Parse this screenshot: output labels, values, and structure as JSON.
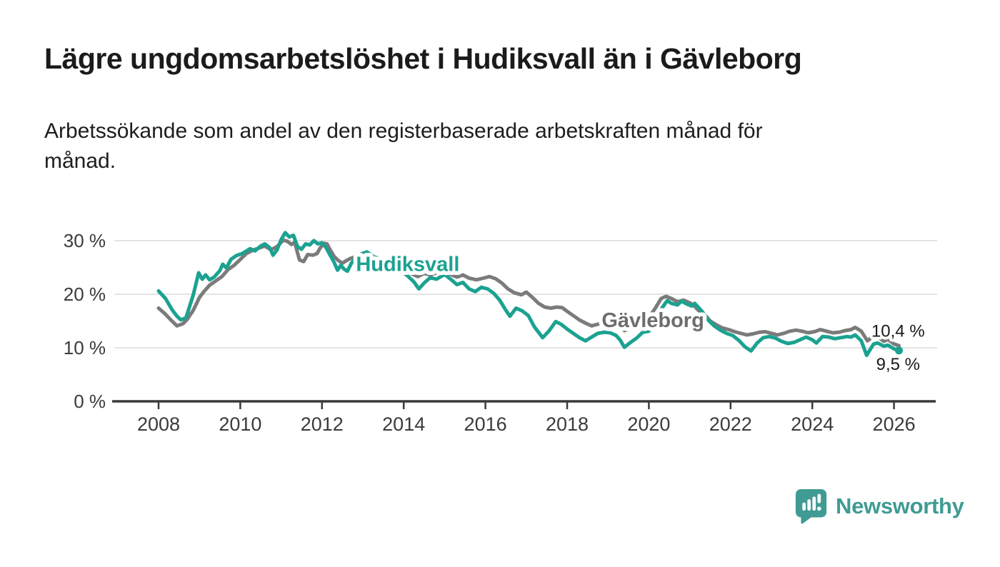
{
  "header": {
    "title": "Lägre ungdomsarbetslöshet i Hudiksvall än i Gävleborg",
    "subtitle": "Arbetssökande som andel av den registerbaserade arbetskraften månad för\nmånad."
  },
  "footer": {
    "brand": "Newsworthy",
    "brand_color": "#3f9b94"
  },
  "chart_data": {
    "type": "line",
    "title": "Lägre ungdomsarbetslöshet i Hudiksvall än i Gävleborg",
    "subtitle": "Arbetssökande som andel av den registerbaserade arbetskraften månad för månad.",
    "unit": "%",
    "grid": "horizontal",
    "legend": "inline-series-labels",
    "x_axis": {
      "range": [
        2006.9,
        2027.0
      ],
      "ticks": [
        {
          "value": 2008,
          "label": "2008"
        },
        {
          "value": 2010,
          "label": "2010"
        },
        {
          "value": 2012,
          "label": "2012"
        },
        {
          "value": 2014,
          "label": "2014"
        },
        {
          "value": 2016,
          "label": "2016"
        },
        {
          "value": 2018,
          "label": "2018"
        },
        {
          "value": 2020,
          "label": "2020"
        },
        {
          "value": 2022,
          "label": "2022"
        },
        {
          "value": 2024,
          "label": "2024"
        },
        {
          "value": 2026,
          "label": "2026"
        }
      ]
    },
    "y_axis": {
      "range": [
        0,
        33
      ],
      "ticks": [
        {
          "value": 0,
          "label": "0 %"
        },
        {
          "value": 10,
          "label": "10 %"
        },
        {
          "value": 20,
          "label": "20 %"
        },
        {
          "value": 30,
          "label": "30 %"
        }
      ]
    },
    "series": [
      {
        "name": "Hudiksvall",
        "color": "#1ba291",
        "label": {
          "text": "Hudiksvall",
          "x": 2014.1,
          "y": 25.7
        },
        "end_dot": true,
        "end_value": "9,5 %",
        "points": [
          [
            2008.0,
            20.6
          ],
          [
            2008.17,
            19.2
          ],
          [
            2008.33,
            17.1
          ],
          [
            2008.45,
            15.9
          ],
          [
            2008.55,
            15.2
          ],
          [
            2008.67,
            15.6
          ],
          [
            2008.75,
            17.5
          ],
          [
            2008.85,
            19.9
          ],
          [
            2008.98,
            24.0
          ],
          [
            2009.07,
            22.8
          ],
          [
            2009.15,
            23.6
          ],
          [
            2009.25,
            22.7
          ],
          [
            2009.36,
            23.2
          ],
          [
            2009.5,
            24.4
          ],
          [
            2009.57,
            25.6
          ],
          [
            2009.66,
            24.9
          ],
          [
            2009.77,
            26.5
          ],
          [
            2009.9,
            27.2
          ],
          [
            2010.05,
            27.6
          ],
          [
            2010.24,
            28.5
          ],
          [
            2010.36,
            28.1
          ],
          [
            2010.5,
            29.0
          ],
          [
            2010.6,
            29.4
          ],
          [
            2010.72,
            28.7
          ],
          [
            2010.8,
            27.3
          ],
          [
            2010.9,
            28.3
          ],
          [
            2011.0,
            30.2
          ],
          [
            2011.1,
            31.5
          ],
          [
            2011.2,
            30.7
          ],
          [
            2011.3,
            31.0
          ],
          [
            2011.4,
            28.9
          ],
          [
            2011.5,
            28.4
          ],
          [
            2011.6,
            29.4
          ],
          [
            2011.7,
            29.2
          ],
          [
            2011.8,
            30.0
          ],
          [
            2011.9,
            29.4
          ],
          [
            2012.0,
            29.6
          ],
          [
            2012.1,
            28.7
          ],
          [
            2012.2,
            27.3
          ],
          [
            2012.3,
            25.9
          ],
          [
            2012.38,
            24.5
          ],
          [
            2012.46,
            25.4
          ],
          [
            2012.54,
            24.7
          ],
          [
            2012.62,
            24.3
          ],
          [
            2012.72,
            25.8
          ],
          [
            2012.8,
            26.6
          ],
          [
            2012.95,
            27.5
          ],
          [
            2013.1,
            27.9
          ],
          [
            2013.3,
            26.8
          ],
          [
            2013.5,
            26.2
          ],
          [
            2013.7,
            25.6
          ],
          [
            2013.9,
            24.6
          ],
          [
            2014.1,
            23.4
          ],
          [
            2014.25,
            22.3
          ],
          [
            2014.37,
            21.0
          ],
          [
            2014.5,
            22.1
          ],
          [
            2014.65,
            23.1
          ],
          [
            2014.8,
            22.8
          ],
          [
            2015.0,
            23.7
          ],
          [
            2015.15,
            22.8
          ],
          [
            2015.3,
            21.8
          ],
          [
            2015.45,
            22.2
          ],
          [
            2015.6,
            21.0
          ],
          [
            2015.75,
            20.5
          ],
          [
            2015.9,
            21.3
          ],
          [
            2016.05,
            21.0
          ],
          [
            2016.2,
            20.2
          ],
          [
            2016.35,
            18.9
          ],
          [
            2016.5,
            17.0
          ],
          [
            2016.6,
            15.9
          ],
          [
            2016.75,
            17.4
          ],
          [
            2016.9,
            16.9
          ],
          [
            2017.05,
            16.0
          ],
          [
            2017.2,
            13.9
          ],
          [
            2017.4,
            11.9
          ],
          [
            2017.55,
            13.1
          ],
          [
            2017.72,
            14.9
          ],
          [
            2017.85,
            14.4
          ],
          [
            2018.0,
            13.5
          ],
          [
            2018.15,
            12.7
          ],
          [
            2018.3,
            11.9
          ],
          [
            2018.45,
            11.3
          ],
          [
            2018.6,
            12.0
          ],
          [
            2018.75,
            12.7
          ],
          [
            2018.9,
            12.9
          ],
          [
            2019.05,
            12.8
          ],
          [
            2019.2,
            12.3
          ],
          [
            2019.3,
            11.4
          ],
          [
            2019.4,
            10.1
          ],
          [
            2019.55,
            11.0
          ],
          [
            2019.7,
            11.8
          ],
          [
            2019.85,
            12.9
          ],
          [
            2020.0,
            13.1
          ],
          [
            2020.15,
            14.7
          ],
          [
            2020.3,
            17.2
          ],
          [
            2020.45,
            18.8
          ],
          [
            2020.55,
            18.3
          ],
          [
            2020.7,
            18.0
          ],
          [
            2020.8,
            18.7
          ],
          [
            2020.95,
            18.1
          ],
          [
            2021.05,
            17.8
          ],
          [
            2021.12,
            18.3
          ],
          [
            2021.3,
            16.8
          ],
          [
            2021.45,
            15.2
          ],
          [
            2021.6,
            14.1
          ],
          [
            2021.75,
            13.3
          ],
          [
            2021.9,
            12.7
          ],
          [
            2022.05,
            12.3
          ],
          [
            2022.2,
            11.4
          ],
          [
            2022.35,
            10.2
          ],
          [
            2022.5,
            9.4
          ],
          [
            2022.65,
            10.9
          ],
          [
            2022.8,
            11.9
          ],
          [
            2022.95,
            12.1
          ],
          [
            2023.1,
            11.8
          ],
          [
            2023.25,
            11.2
          ],
          [
            2023.4,
            10.8
          ],
          [
            2023.55,
            11.0
          ],
          [
            2023.7,
            11.5
          ],
          [
            2023.85,
            12.0
          ],
          [
            2024.0,
            11.5
          ],
          [
            2024.1,
            10.9
          ],
          [
            2024.25,
            12.1
          ],
          [
            2024.4,
            12.0
          ],
          [
            2024.55,
            11.7
          ],
          [
            2024.7,
            11.9
          ],
          [
            2024.85,
            12.1
          ],
          [
            2024.95,
            12.0
          ],
          [
            2025.05,
            12.4
          ],
          [
            2025.2,
            11.3
          ],
          [
            2025.33,
            8.6
          ],
          [
            2025.5,
            10.7
          ],
          [
            2025.6,
            10.9
          ],
          [
            2025.75,
            10.3
          ],
          [
            2025.85,
            10.5
          ],
          [
            2026.0,
            9.8
          ],
          [
            2026.12,
            9.5
          ]
        ]
      },
      {
        "name": "Gävleborg",
        "color": "#7b7b7b",
        "label_color": "#6d6d6d",
        "label": {
          "text": "Gävleborg",
          "x": 2020.1,
          "y": 15.2
        },
        "end_dot": false,
        "end_value": "10,4 %",
        "points": [
          [
            2008.0,
            17.4
          ],
          [
            2008.15,
            16.4
          ],
          [
            2008.3,
            15.2
          ],
          [
            2008.45,
            14.1
          ],
          [
            2008.6,
            14.5
          ],
          [
            2008.7,
            15.3
          ],
          [
            2008.85,
            17.0
          ],
          [
            2009.0,
            19.4
          ],
          [
            2009.1,
            20.4
          ],
          [
            2009.25,
            21.7
          ],
          [
            2009.4,
            22.5
          ],
          [
            2009.55,
            23.3
          ],
          [
            2009.7,
            24.6
          ],
          [
            2009.85,
            25.4
          ],
          [
            2010.0,
            26.5
          ],
          [
            2010.15,
            27.6
          ],
          [
            2010.3,
            28.2
          ],
          [
            2010.45,
            28.6
          ],
          [
            2010.6,
            29.0
          ],
          [
            2010.75,
            28.3
          ],
          [
            2010.9,
            28.9
          ],
          [
            2011.05,
            30.1
          ],
          [
            2011.15,
            29.9
          ],
          [
            2011.25,
            29.3
          ],
          [
            2011.33,
            29.7
          ],
          [
            2011.45,
            26.4
          ],
          [
            2011.55,
            26.1
          ],
          [
            2011.65,
            27.4
          ],
          [
            2011.78,
            27.3
          ],
          [
            2011.88,
            27.6
          ],
          [
            2011.96,
            28.7
          ],
          [
            2012.05,
            29.5
          ],
          [
            2012.12,
            29.4
          ],
          [
            2012.2,
            28.3
          ],
          [
            2012.3,
            27.0
          ],
          [
            2012.4,
            26.3
          ],
          [
            2012.5,
            25.8
          ],
          [
            2012.6,
            26.3
          ],
          [
            2012.7,
            26.7
          ],
          [
            2012.85,
            27.1
          ],
          [
            2013.0,
            27.5
          ],
          [
            2013.2,
            27.1
          ],
          [
            2013.4,
            26.7
          ],
          [
            2013.6,
            26.2
          ],
          [
            2013.8,
            25.6
          ],
          [
            2014.0,
            24.8
          ],
          [
            2014.2,
            23.8
          ],
          [
            2014.35,
            23.3
          ],
          [
            2014.5,
            23.9
          ],
          [
            2014.65,
            23.6
          ],
          [
            2014.8,
            24.0
          ],
          [
            2015.0,
            24.3
          ],
          [
            2015.15,
            23.7
          ],
          [
            2015.3,
            23.2
          ],
          [
            2015.45,
            23.6
          ],
          [
            2015.6,
            23.0
          ],
          [
            2015.78,
            22.7
          ],
          [
            2015.95,
            23.0
          ],
          [
            2016.1,
            23.3
          ],
          [
            2016.25,
            22.9
          ],
          [
            2016.4,
            22.1
          ],
          [
            2016.55,
            21.0
          ],
          [
            2016.7,
            20.3
          ],
          [
            2016.88,
            19.9
          ],
          [
            2017.0,
            20.4
          ],
          [
            2017.15,
            19.4
          ],
          [
            2017.3,
            18.3
          ],
          [
            2017.45,
            17.6
          ],
          [
            2017.6,
            17.4
          ],
          [
            2017.75,
            17.6
          ],
          [
            2017.88,
            17.5
          ],
          [
            2018.0,
            16.8
          ],
          [
            2018.15,
            16.0
          ],
          [
            2018.3,
            15.2
          ],
          [
            2018.45,
            14.6
          ],
          [
            2018.6,
            14.1
          ],
          [
            2018.75,
            14.4
          ],
          [
            2018.9,
            14.7
          ],
          [
            2019.05,
            14.9
          ],
          [
            2019.2,
            14.3
          ],
          [
            2019.3,
            13.8
          ],
          [
            2019.4,
            13.2
          ],
          [
            2019.55,
            13.6
          ],
          [
            2019.7,
            14.1
          ],
          [
            2019.85,
            14.9
          ],
          [
            2020.0,
            15.7
          ],
          [
            2020.15,
            17.3
          ],
          [
            2020.3,
            19.2
          ],
          [
            2020.42,
            19.6
          ],
          [
            2020.55,
            19.2
          ],
          [
            2020.7,
            18.6
          ],
          [
            2020.85,
            18.9
          ],
          [
            2021.0,
            18.4
          ],
          [
            2021.1,
            17.9
          ],
          [
            2021.25,
            16.7
          ],
          [
            2021.4,
            15.9
          ],
          [
            2021.5,
            15.0
          ],
          [
            2021.65,
            14.3
          ],
          [
            2021.8,
            13.7
          ],
          [
            2021.95,
            13.4
          ],
          [
            2022.1,
            13.0
          ],
          [
            2022.25,
            12.7
          ],
          [
            2022.4,
            12.4
          ],
          [
            2022.55,
            12.6
          ],
          [
            2022.7,
            12.9
          ],
          [
            2022.85,
            13.0
          ],
          [
            2023.0,
            12.7
          ],
          [
            2023.15,
            12.4
          ],
          [
            2023.3,
            12.7
          ],
          [
            2023.45,
            13.1
          ],
          [
            2023.6,
            13.3
          ],
          [
            2023.75,
            13.1
          ],
          [
            2023.9,
            12.8
          ],
          [
            2024.05,
            13.0
          ],
          [
            2024.2,
            13.4
          ],
          [
            2024.35,
            13.1
          ],
          [
            2024.5,
            12.8
          ],
          [
            2024.65,
            12.9
          ],
          [
            2024.8,
            13.2
          ],
          [
            2024.95,
            13.4
          ],
          [
            2025.05,
            13.8
          ],
          [
            2025.2,
            13.1
          ],
          [
            2025.35,
            11.3
          ],
          [
            2025.5,
            12.2
          ],
          [
            2025.65,
            11.8
          ],
          [
            2025.75,
            11.2
          ],
          [
            2025.85,
            11.6
          ],
          [
            2026.0,
            10.7
          ],
          [
            2026.12,
            10.4
          ]
        ]
      }
    ],
    "annotations": [
      {
        "text": "10,4 %",
        "x": 2026.1,
        "y": 13.3
      },
      {
        "text": "9,5 %",
        "x": 2026.1,
        "y": 7.05
      }
    ]
  }
}
